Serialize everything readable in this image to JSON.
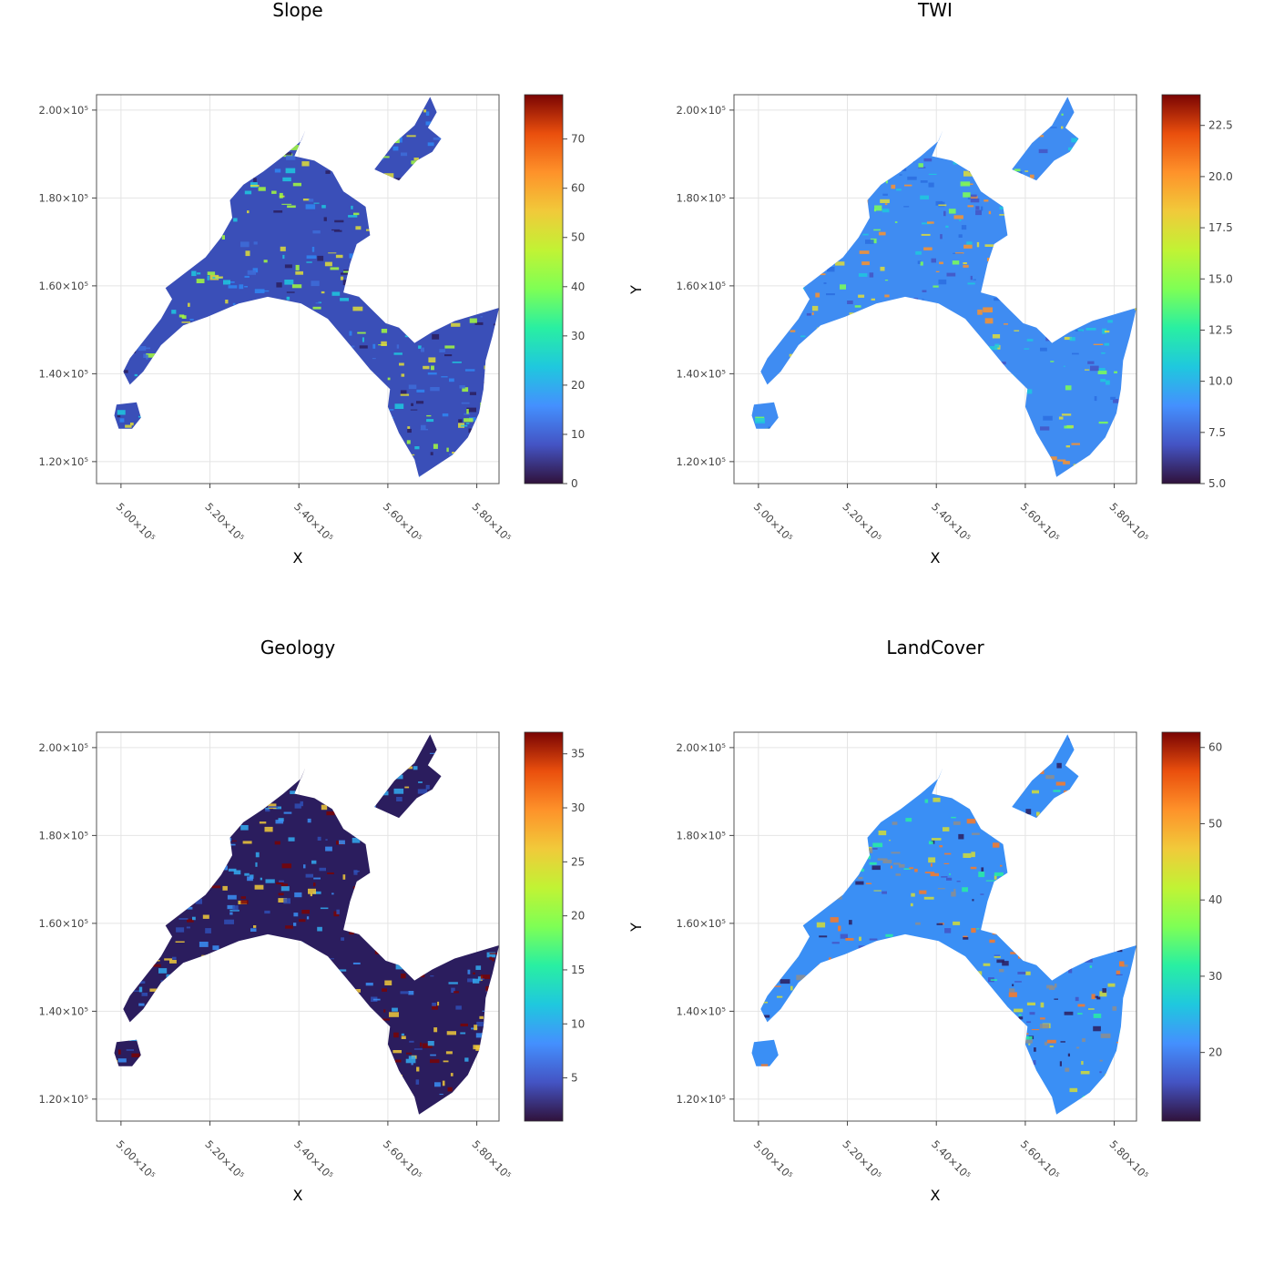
{
  "chart_data": [
    {
      "type": "heatmap",
      "title": "Slope",
      "xlabel": "X",
      "ylabel": "",
      "xticks": [
        "5.00×10⁵",
        "5.20×10⁵",
        "5.40×10⁵",
        "5.60×10⁵",
        "5.80×10⁵"
      ],
      "yticks": [
        "2.00×10⁵",
        "1.80×10⁵",
        "1.60×10⁵",
        "1.40×10⁵",
        "1.20×10⁵"
      ],
      "xlim": [
        494500,
        585000
      ],
      "ylim": [
        115000,
        203500
      ],
      "colorbar": {
        "range": [
          0,
          79
        ],
        "ticks": [
          0,
          10,
          20,
          30,
          40,
          50,
          60,
          70
        ]
      },
      "colormap": "turbo",
      "grid": true
    },
    {
      "type": "heatmap",
      "title": "TWI",
      "xlabel": "X",
      "ylabel": "Y",
      "xticks": [
        "5.00×10⁵",
        "5.20×10⁵",
        "5.40×10⁵",
        "5.60×10⁵",
        "5.80×10⁵"
      ],
      "yticks": [
        "2.00×10⁵",
        "1.80×10⁵",
        "1.60×10⁵",
        "1.40×10⁵",
        "1.20×10⁵"
      ],
      "xlim": [
        494500,
        585000
      ],
      "ylim": [
        115000,
        203500
      ],
      "colorbar": {
        "range": [
          5,
          24
        ],
        "ticks": [
          "5.0",
          "7.5",
          "10.0",
          "12.5",
          "15.0",
          "17.5",
          "20.0",
          "22.5"
        ]
      },
      "colormap": "turbo",
      "grid": true
    },
    {
      "type": "heatmap",
      "title": "Geology",
      "xlabel": "X",
      "ylabel": "",
      "xticks": [
        "5.00×10⁵",
        "5.20×10⁵",
        "5.40×10⁵",
        "5.60×10⁵",
        "5.80×10⁵"
      ],
      "yticks": [
        "2.00×10⁵",
        "1.80×10⁵",
        "1.60×10⁵",
        "1.40×10⁵",
        "1.20×10⁵"
      ],
      "xlim": [
        494500,
        585000
      ],
      "ylim": [
        115000,
        203500
      ],
      "colorbar": {
        "range": [
          1,
          37
        ],
        "ticks": [
          5,
          10,
          15,
          20,
          25,
          30,
          35
        ]
      },
      "colormap": "turbo",
      "grid": true
    },
    {
      "type": "heatmap",
      "title": "LandCover",
      "xlabel": "X",
      "ylabel": "Y",
      "xticks": [
        "5.00×10⁵",
        "5.20×10⁵",
        "5.40×10⁵",
        "5.60×10⁵",
        "5.80×10⁵"
      ],
      "yticks": [
        "2.00×10⁵",
        "1.80×10⁵",
        "1.60×10⁵",
        "1.40×10⁵",
        "1.20×10⁵"
      ],
      "xlim": [
        494500,
        585000
      ],
      "ylim": [
        115000,
        203500
      ],
      "colorbar": {
        "range": [
          11,
          62
        ],
        "ticks": [
          20,
          30,
          40,
          50,
          60
        ]
      },
      "colormap": "turbo",
      "grid": true
    }
  ],
  "colors": {
    "turbo_low": "#30123b",
    "turbo_blue": "#3a8ff5",
    "turbo_cyan": "#1ae4b6",
    "turbo_green": "#a4fc3c",
    "turbo_yellow": "#e1dd37",
    "turbo_orange": "#fb8022",
    "turbo_high": "#7a0403"
  }
}
